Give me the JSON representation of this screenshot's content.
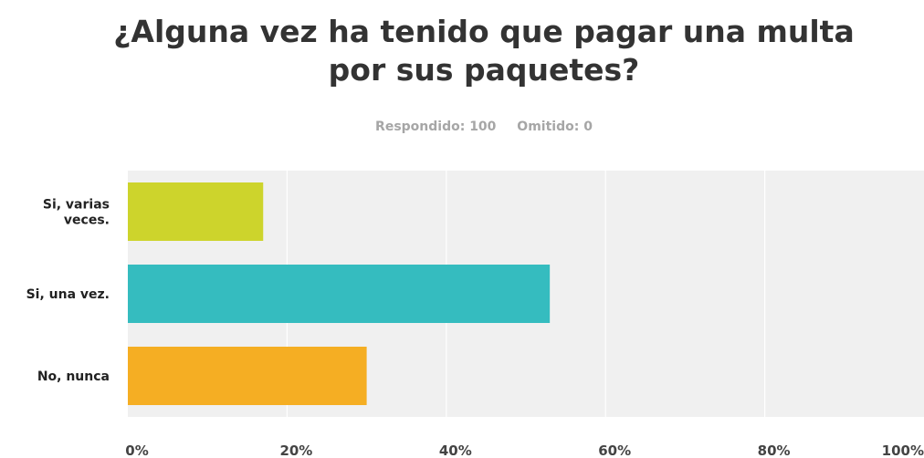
{
  "header": {
    "title_line1": "¿Alguna vez ha tenido que pagar una multa",
    "title_line2": "por sus paquetes?",
    "answered": "Respondido: 100",
    "skipped": "Omitido: 0"
  },
  "chart_data": {
    "type": "bar",
    "orientation": "horizontal",
    "title": "¿Alguna vez ha tenido que pagar una multa por sus paquetes?",
    "categories": [
      "Si, varias veces.",
      "Si, una vez.",
      "No, nunca"
    ],
    "category_lines": [
      [
        "Si, varias",
        "veces."
      ],
      [
        "Si, una vez."
      ],
      [
        "No, nunca"
      ]
    ],
    "values": [
      17,
      53,
      30
    ],
    "colors": [
      "#cdd42c",
      "#35bcbf",
      "#f5ae23"
    ],
    "xlim": [
      0,
      100
    ],
    "xticks": [
      0,
      20,
      40,
      60,
      80,
      100
    ],
    "xtick_labels": [
      "0%",
      "20%",
      "40%",
      "60%",
      "80%",
      "100%"
    ],
    "grid": true,
    "xlabel": "",
    "ylabel": ""
  }
}
